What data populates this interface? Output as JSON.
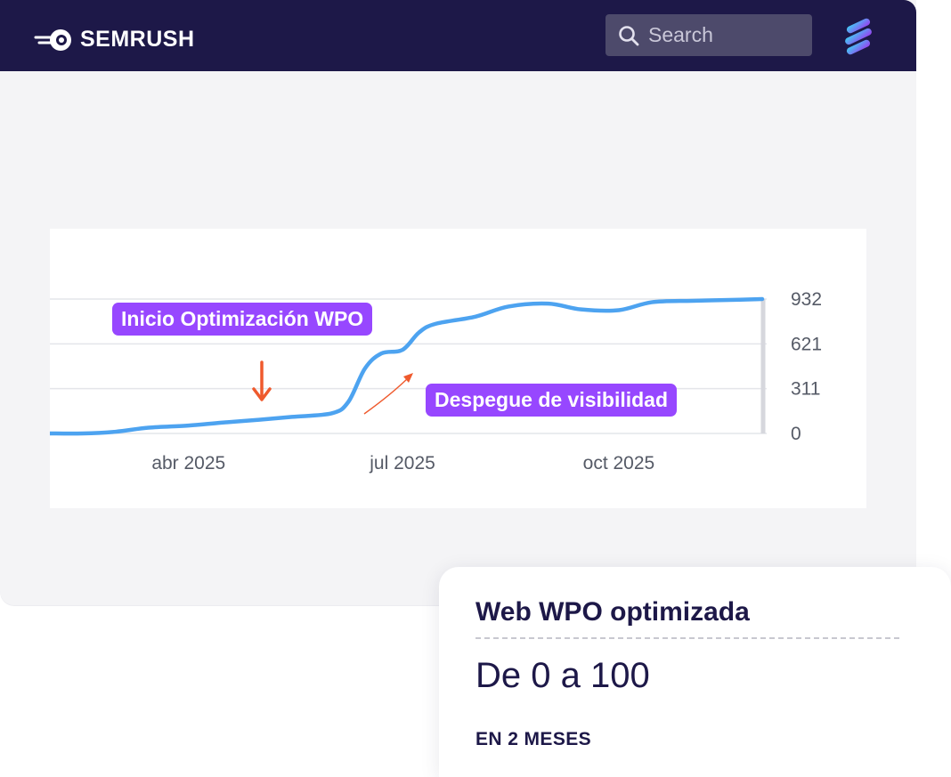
{
  "header": {
    "brand": "SEMRUSH",
    "search_placeholder": "Search",
    "logo_icon": "semrush-fire-logo-icon",
    "search_icon": "search-icon",
    "app_icon": "layers-icon"
  },
  "chart_data": {
    "type": "line",
    "x": [
      "2025-02-01",
      "2025-02-15",
      "2025-03-01",
      "2025-03-15",
      "2025-04-01",
      "2025-04-15",
      "2025-05-01",
      "2025-05-15",
      "2025-06-01",
      "2025-06-08",
      "2025-06-15",
      "2025-06-22",
      "2025-07-01",
      "2025-07-08",
      "2025-07-15",
      "2025-08-01",
      "2025-08-15",
      "2025-09-01",
      "2025-09-15",
      "2025-10-01",
      "2025-10-15",
      "2025-11-01",
      "2025-11-15",
      "2025-12-01"
    ],
    "series": [
      {
        "values": [
          0,
          0,
          12,
          40,
          55,
          75,
          95,
          115,
          140,
          220,
          450,
          555,
          580,
          700,
          760,
          810,
          880,
          900,
          860,
          855,
          910,
          920,
          925,
          932
        ],
        "color": "#4da3f0"
      }
    ],
    "xticks": [
      {
        "label": "abr 2025",
        "date": "2025-04-01"
      },
      {
        "label": "jul 2025",
        "date": "2025-07-01"
      },
      {
        "label": "oct 2025",
        "date": "2025-10-01"
      }
    ],
    "yticks": [
      932,
      621,
      311,
      0
    ],
    "ylim": [
      0,
      932
    ],
    "grid": true,
    "annotations": [
      {
        "text": "Inicio Optimización WPO",
        "color": "#9747ff"
      },
      {
        "text": "Despegue de visibilidad",
        "color": "#9747ff"
      }
    ],
    "arrow_color": "#ef5a2d"
  },
  "result": {
    "title": "Web WPO optimizada",
    "value": "De 0 a 100",
    "subtitle": "EN 2 MESES"
  }
}
